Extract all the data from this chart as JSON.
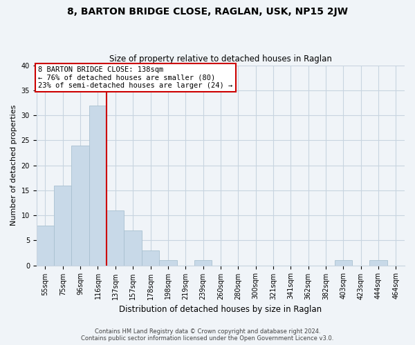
{
  "title": "8, BARTON BRIDGE CLOSE, RAGLAN, USK, NP15 2JW",
  "subtitle": "Size of property relative to detached houses in Raglan",
  "xlabel": "Distribution of detached houses by size in Raglan",
  "ylabel": "Number of detached properties",
  "bar_labels": [
    "55sqm",
    "75sqm",
    "96sqm",
    "116sqm",
    "137sqm",
    "157sqm",
    "178sqm",
    "198sqm",
    "219sqm",
    "239sqm",
    "260sqm",
    "280sqm",
    "300sqm",
    "321sqm",
    "341sqm",
    "362sqm",
    "382sqm",
    "403sqm",
    "423sqm",
    "444sqm",
    "464sqm"
  ],
  "bar_values": [
    8,
    16,
    24,
    32,
    11,
    7,
    3,
    1,
    0,
    1,
    0,
    0,
    0,
    0,
    0,
    0,
    0,
    1,
    0,
    1,
    0
  ],
  "bar_color": "#c8d9e8",
  "bar_edge_color": "#a8c0d0",
  "vline_x": 3.5,
  "vline_color": "#cc0000",
  "annotation_line1": "8 BARTON BRIDGE CLOSE: 138sqm",
  "annotation_line2": "← 76% of detached houses are smaller (80)",
  "annotation_line3": "23% of semi-detached houses are larger (24) →",
  "annotation_box_color": "#ffffff",
  "annotation_box_edge": "#cc0000",
  "ylim": [
    0,
    40
  ],
  "yticks": [
    0,
    5,
    10,
    15,
    20,
    25,
    30,
    35,
    40
  ],
  "footer_line1": "Contains HM Land Registry data © Crown copyright and database right 2024.",
  "footer_line2": "Contains public sector information licensed under the Open Government Licence v3.0.",
  "bg_color": "#f0f4f8",
  "grid_color": "#c8d4e0",
  "title_fontsize": 10,
  "subtitle_fontsize": 8.5,
  "xlabel_fontsize": 8.5,
  "ylabel_fontsize": 8,
  "tick_fontsize": 7,
  "annot_fontsize": 7.5,
  "footer_fontsize": 6
}
